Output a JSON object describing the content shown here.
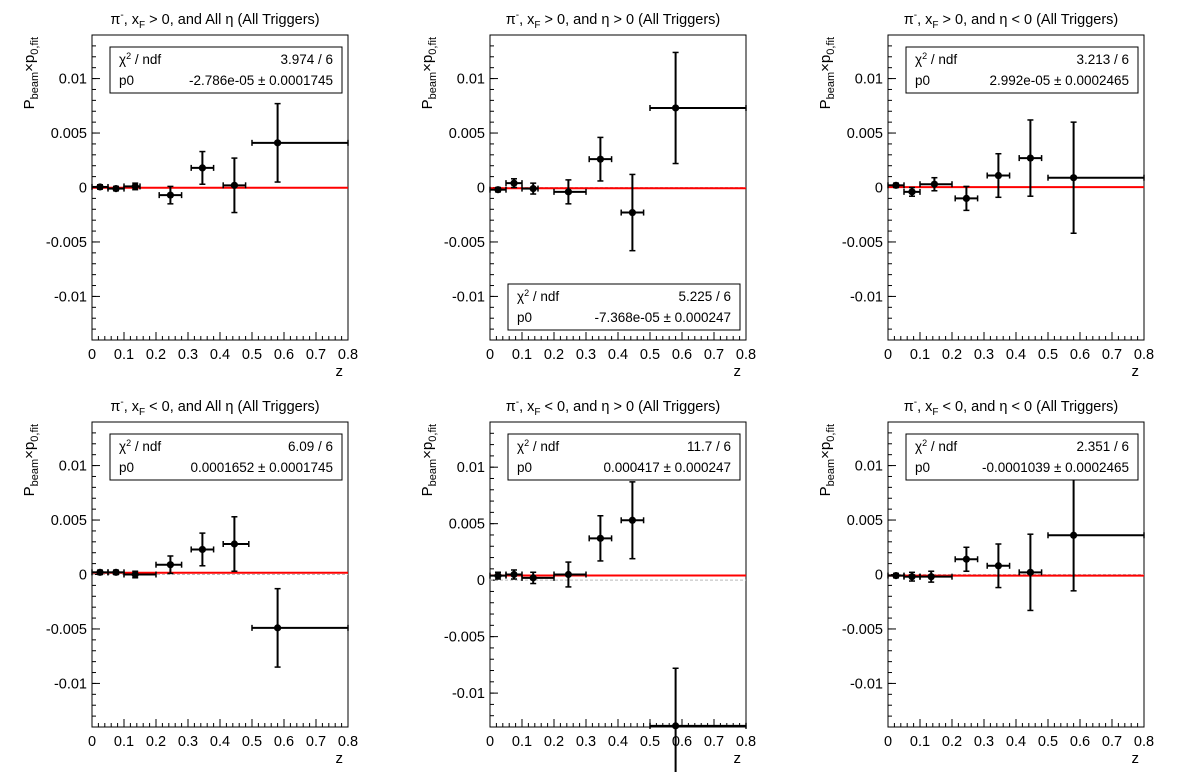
{
  "figure": {
    "page_title": ""
  },
  "chart_data": [
    {
      "type": "scatter",
      "title": "π⁻, x_F > 0, and All η (All Triggers)",
      "title_parts": [
        "π",
        "-",
        ", x",
        "F",
        " > 0, and All η (All Triggers)"
      ],
      "xlabel": "z",
      "ylabel_parts": [
        "P",
        "beam",
        "×p",
        "0,fit"
      ],
      "xlim": [
        0,
        0.8
      ],
      "ylim": [
        -0.014,
        0.014
      ],
      "xticks": [
        0,
        0.1,
        0.2,
        0.3,
        0.4,
        0.5,
        0.6,
        0.7,
        0.8
      ],
      "xtick_labels": [
        "0",
        "0.1",
        "0.2",
        "0.3",
        "0.4",
        "0.5",
        "0.6",
        "0.7",
        "0.8"
      ],
      "yticks": [
        -0.01,
        -0.005,
        0,
        0.005,
        0.01
      ],
      "ytick_labels": [
        "-0.01",
        "-0.005",
        "0",
        "0.005",
        "0.01"
      ],
      "grid": false,
      "fit_line_y": -2.786e-05,
      "fit_color": "#ff0000",
      "stats_box": {
        "position": "top",
        "rows": [
          [
            "χ2 / ndf",
            "3.974 / 6"
          ],
          [
            "p0",
            "-2.786e-05 ± 0.0001745"
          ]
        ]
      },
      "points": [
        {
          "x": 0.025,
          "xlo": 0.0,
          "xhi": 0.05,
          "y": 5e-05,
          "yerr": 0.0002
        },
        {
          "x": 0.075,
          "xlo": 0.05,
          "xhi": 0.1,
          "y": -0.0001,
          "yerr": 0.0002
        },
        {
          "x": 0.135,
          "xlo": 0.1,
          "xhi": 0.15,
          "y": 0.0001,
          "yerr": 0.0003
        },
        {
          "x": 0.245,
          "xlo": 0.21,
          "xhi": 0.28,
          "y": -0.0007,
          "yerr": 0.0008
        },
        {
          "x": 0.345,
          "xlo": 0.31,
          "xhi": 0.38,
          "y": 0.0018,
          "yerr": 0.0015
        },
        {
          "x": 0.445,
          "xlo": 0.41,
          "xhi": 0.48,
          "y": 0.0002,
          "yerr": 0.0025
        },
        {
          "x": 0.58,
          "xlo": 0.5,
          "xhi": 0.8,
          "y": 0.0041,
          "yerr": 0.0036
        }
      ]
    },
    {
      "type": "scatter",
      "title": "π⁻, x_F > 0, and η > 0 (All Triggers)",
      "title_parts": [
        "π",
        "-",
        ", x",
        "F",
        " > 0, and η > 0 (All Triggers)"
      ],
      "xlabel": "z",
      "ylabel_parts": [
        "P",
        "beam",
        "×p",
        "0,fit"
      ],
      "xlim": [
        0,
        0.8
      ],
      "ylim": [
        -0.014,
        0.014
      ],
      "xticks": [
        0,
        0.1,
        0.2,
        0.3,
        0.4,
        0.5,
        0.6,
        0.7,
        0.8
      ],
      "xtick_labels": [
        "0",
        "0.1",
        "0.2",
        "0.3",
        "0.4",
        "0.5",
        "0.6",
        "0.7",
        "0.8"
      ],
      "yticks": [
        -0.01,
        -0.005,
        0,
        0.005,
        0.01
      ],
      "ytick_labels": [
        "-0.01",
        "-0.005",
        "0",
        "0.005",
        "0.01"
      ],
      "grid": false,
      "fit_line_y": -7.368e-05,
      "fit_color": "#ff0000",
      "stats_box": {
        "position": "bottom",
        "rows": [
          [
            "χ2 / ndf",
            "5.225 / 6"
          ],
          [
            "p0",
            "-7.368e-05 ± 0.000247"
          ]
        ]
      },
      "points": [
        {
          "x": 0.025,
          "xlo": 0.0,
          "xhi": 0.05,
          "y": -0.0002,
          "yerr": 0.0002
        },
        {
          "x": 0.075,
          "xlo": 0.05,
          "xhi": 0.1,
          "y": 0.0004,
          "yerr": 0.0004
        },
        {
          "x": 0.135,
          "xlo": 0.1,
          "xhi": 0.15,
          "y": -0.0001,
          "yerr": 0.0005
        },
        {
          "x": 0.245,
          "xlo": 0.2,
          "xhi": 0.3,
          "y": -0.0004,
          "yerr": 0.0011
        },
        {
          "x": 0.345,
          "xlo": 0.31,
          "xhi": 0.38,
          "y": 0.0026,
          "yerr": 0.002
        },
        {
          "x": 0.445,
          "xlo": 0.41,
          "xhi": 0.48,
          "y": -0.0023,
          "yerr": 0.0035
        },
        {
          "x": 0.58,
          "xlo": 0.5,
          "xhi": 0.8,
          "y": 0.0073,
          "yerr": 0.0051
        }
      ]
    },
    {
      "type": "scatter",
      "title": "π⁻, x_F > 0, and η < 0 (All Triggers)",
      "title_parts": [
        "π",
        "-",
        ", x",
        "F",
        " > 0, and η < 0 (All Triggers)"
      ],
      "xlabel": "z",
      "ylabel_parts": [
        "P",
        "beam",
        "×p",
        "0,fit"
      ],
      "xlim": [
        0,
        0.8
      ],
      "ylim": [
        -0.014,
        0.014
      ],
      "xticks": [
        0,
        0.1,
        0.2,
        0.3,
        0.4,
        0.5,
        0.6,
        0.7,
        0.8
      ],
      "xtick_labels": [
        "0",
        "0.1",
        "0.2",
        "0.3",
        "0.4",
        "0.5",
        "0.6",
        "0.7",
        "0.8"
      ],
      "yticks": [
        -0.01,
        -0.005,
        0,
        0.005,
        0.01
      ],
      "ytick_labels": [
        "-0.01",
        "-0.005",
        "0",
        "0.005",
        "0.01"
      ],
      "grid": false,
      "fit_line_y": 2.992e-05,
      "fit_color": "#ff0000",
      "stats_box": {
        "position": "top",
        "rows": [
          [
            "χ2 / ndf",
            "3.213 / 6"
          ],
          [
            "p0",
            "2.992e-05 ± 0.0002465"
          ]
        ]
      },
      "points": [
        {
          "x": 0.025,
          "xlo": 0.0,
          "xhi": 0.05,
          "y": 0.0002,
          "yerr": 0.0002
        },
        {
          "x": 0.075,
          "xlo": 0.05,
          "xhi": 0.1,
          "y": -0.0004,
          "yerr": 0.0004
        },
        {
          "x": 0.145,
          "xlo": 0.1,
          "xhi": 0.2,
          "y": 0.0003,
          "yerr": 0.0006
        },
        {
          "x": 0.245,
          "xlo": 0.21,
          "xhi": 0.28,
          "y": -0.001,
          "yerr": 0.0011
        },
        {
          "x": 0.345,
          "xlo": 0.31,
          "xhi": 0.38,
          "y": 0.0011,
          "yerr": 0.002
        },
        {
          "x": 0.445,
          "xlo": 0.41,
          "xhi": 0.48,
          "y": 0.0027,
          "yerr": 0.0035
        },
        {
          "x": 0.58,
          "xlo": 0.5,
          "xhi": 0.8,
          "y": 0.0009,
          "yerr": 0.0051
        }
      ]
    },
    {
      "type": "scatter",
      "title": "π⁻, x_F < 0, and All η (All Triggers)",
      "title_parts": [
        "π",
        "-",
        ", x",
        "F",
        " < 0, and All η (All Triggers)"
      ],
      "xlabel": "z",
      "ylabel_parts": [
        "P",
        "beam",
        "×p",
        "0,fit"
      ],
      "xlim": [
        0,
        0.8
      ],
      "ylim": [
        -0.014,
        0.014
      ],
      "xticks": [
        0,
        0.1,
        0.2,
        0.3,
        0.4,
        0.5,
        0.6,
        0.7,
        0.8
      ],
      "xtick_labels": [
        "0",
        "0.1",
        "0.2",
        "0.3",
        "0.4",
        "0.5",
        "0.6",
        "0.7",
        "0.8"
      ],
      "yticks": [
        -0.01,
        -0.005,
        0,
        0.005,
        0.01
      ],
      "ytick_labels": [
        "-0.01",
        "-0.005",
        "0",
        "0.005",
        "0.01"
      ],
      "grid": false,
      "fit_line_y": 0.0001652,
      "fit_color": "#ff0000",
      "stats_box": {
        "position": "top",
        "rows": [
          [
            "χ2 / ndf",
            "6.09 / 6"
          ],
          [
            "p0",
            "0.0001652 ± 0.0001745"
          ]
        ]
      },
      "points": [
        {
          "x": 0.025,
          "xlo": 0.0,
          "xhi": 0.05,
          "y": 0.0002,
          "yerr": 0.0002
        },
        {
          "x": 0.075,
          "xlo": 0.05,
          "xhi": 0.1,
          "y": 0.0002,
          "yerr": 0.0002
        },
        {
          "x": 0.135,
          "xlo": 0.1,
          "xhi": 0.2,
          "y": 0.0,
          "yerr": 0.0003
        },
        {
          "x": 0.245,
          "xlo": 0.2,
          "xhi": 0.28,
          "y": 0.0009,
          "yerr": 0.0008
        },
        {
          "x": 0.345,
          "xlo": 0.31,
          "xhi": 0.38,
          "y": 0.0023,
          "yerr": 0.0015
        },
        {
          "x": 0.445,
          "xlo": 0.41,
          "xhi": 0.49,
          "y": 0.0028,
          "yerr": 0.0025
        },
        {
          "x": 0.58,
          "xlo": 0.5,
          "xhi": 0.8,
          "y": -0.0049,
          "yerr": 0.0036
        }
      ]
    },
    {
      "type": "scatter",
      "title": "π⁻, x_F < 0, and η > 0 (All Triggers)",
      "title_parts": [
        "π",
        "-",
        ", x",
        "F",
        " < 0, and η > 0 (All Triggers)"
      ],
      "xlabel": "z",
      "ylabel_parts": [
        "P",
        "beam",
        "×p",
        "0,fit"
      ],
      "xlim": [
        0,
        0.8
      ],
      "ylim": [
        -0.013,
        0.014
      ],
      "xticks": [
        0,
        0.1,
        0.2,
        0.3,
        0.4,
        0.5,
        0.6,
        0.7,
        0.8
      ],
      "xtick_labels": [
        "0",
        "0.1",
        "0.2",
        "0.3",
        "0.4",
        "0.5",
        "0.6",
        "0.7",
        "0.8"
      ],
      "yticks": [
        -0.01,
        -0.005,
        0,
        0.005,
        0.01
      ],
      "ytick_labels": [
        "-0.01",
        "-0.005",
        "0",
        "0.005",
        "0.01"
      ],
      "grid": false,
      "fit_line_y": 0.000417,
      "fit_color": "#ff0000",
      "stats_box": {
        "position": "top",
        "rows": [
          [
            "χ2 / ndf",
            "11.7 / 6"
          ],
          [
            "p0",
            "0.000417 ± 0.000247"
          ]
        ]
      },
      "points": [
        {
          "x": 0.025,
          "xlo": 0.0,
          "xhi": 0.05,
          "y": 0.0004,
          "yerr": 0.0003
        },
        {
          "x": 0.075,
          "xlo": 0.05,
          "xhi": 0.1,
          "y": 0.0005,
          "yerr": 0.0004
        },
        {
          "x": 0.135,
          "xlo": 0.1,
          "xhi": 0.2,
          "y": 0.0002,
          "yerr": 0.0005
        },
        {
          "x": 0.245,
          "xlo": 0.2,
          "xhi": 0.3,
          "y": 0.0005,
          "yerr": 0.0011
        },
        {
          "x": 0.345,
          "xlo": 0.31,
          "xhi": 0.38,
          "y": 0.0037,
          "yerr": 0.002
        },
        {
          "x": 0.445,
          "xlo": 0.41,
          "xhi": 0.48,
          "y": 0.0053,
          "yerr": 0.0034
        },
        {
          "x": 0.58,
          "xlo": 0.5,
          "xhi": 0.8,
          "y": -0.0129,
          "yerr": 0.0051
        }
      ]
    },
    {
      "type": "scatter",
      "title": "π⁻, x_F < 0, and η < 0 (All Triggers)",
      "title_parts": [
        "π",
        "-",
        ", x",
        "F",
        " < 0, and η < 0 (All Triggers)"
      ],
      "xlabel": "z",
      "ylabel_parts": [
        "P",
        "beam",
        "×p",
        "0,fit"
      ],
      "xlim": [
        0,
        0.8
      ],
      "ylim": [
        -0.014,
        0.014
      ],
      "xticks": [
        0,
        0.1,
        0.2,
        0.3,
        0.4,
        0.5,
        0.6,
        0.7,
        0.8
      ],
      "xtick_labels": [
        "0",
        "0.1",
        "0.2",
        "0.3",
        "0.4",
        "0.5",
        "0.6",
        "0.7",
        "0.8"
      ],
      "yticks": [
        -0.01,
        -0.005,
        0,
        0.005,
        0.01
      ],
      "ytick_labels": [
        "-0.01",
        "-0.005",
        "0",
        "0.005",
        "0.01"
      ],
      "grid": false,
      "fit_line_y": -0.0001039,
      "fit_color": "#ff0000",
      "stats_box": {
        "position": "top",
        "rows": [
          [
            "χ2 / ndf",
            "2.351 / 6"
          ],
          [
            "p0",
            "-0.0001039 ± 0.0002465"
          ]
        ]
      },
      "points": [
        {
          "x": 0.025,
          "xlo": 0.0,
          "xhi": 0.05,
          "y": -0.0001,
          "yerr": 0.0002
        },
        {
          "x": 0.075,
          "xlo": 0.05,
          "xhi": 0.1,
          "y": -0.0002,
          "yerr": 0.0004
        },
        {
          "x": 0.135,
          "xlo": 0.1,
          "xhi": 0.2,
          "y": -0.0002,
          "yerr": 0.0005
        },
        {
          "x": 0.245,
          "xlo": 0.21,
          "xhi": 0.28,
          "y": 0.0014,
          "yerr": 0.0011
        },
        {
          "x": 0.345,
          "xlo": 0.31,
          "xhi": 0.38,
          "y": 0.0008,
          "yerr": 0.002
        },
        {
          "x": 0.445,
          "xlo": 0.41,
          "xhi": 0.48,
          "y": 0.0002,
          "yerr": 0.0035
        },
        {
          "x": 0.58,
          "xlo": 0.5,
          "xhi": 0.8,
          "y": 0.0036,
          "yerr": 0.0051
        }
      ]
    }
  ]
}
